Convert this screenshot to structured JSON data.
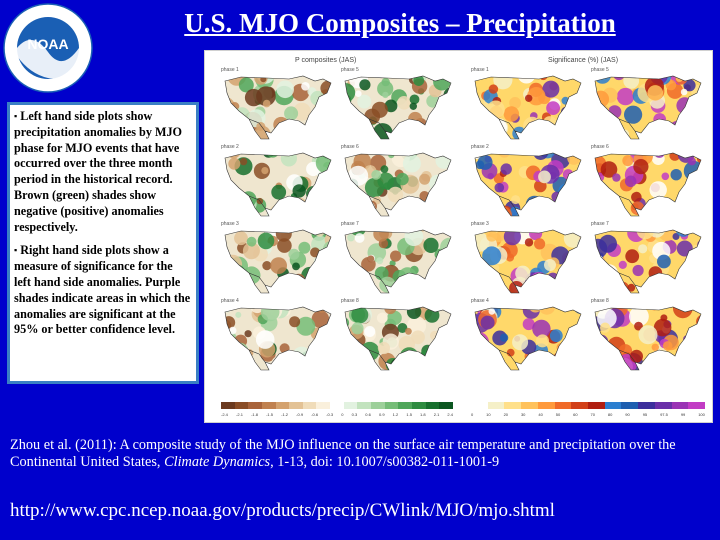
{
  "title": "U.S. MJO Composites – Precipitation",
  "logo": {
    "text": "NOAA",
    "icon": "noaa-logo-icon",
    "color": "#1a5fb4"
  },
  "textbox": {
    "bullet1": "Left hand side plots show precipitation anomalies by MJO phase for MJO events that have occurred over the three month period in the historical record. Brown (green) shades show negative (positive) anomalies respectively.",
    "bullet2": "Right hand side plots show a measure of significance for the left hand side anomalies. Purple shades indicate areas in which the anomalies are significant at the 95% or better confidence level."
  },
  "figure": {
    "left_title": "P composites (JAS)",
    "right_title": "Significance (%) (JAS)",
    "left_phases": [
      "phase 1",
      "phase 5",
      "phase 2",
      "phase 6",
      "phase 3",
      "phase 7",
      "phase 4",
      "phase 8"
    ],
    "right_phases": [
      "phase 1",
      "phase 5",
      "phase 2",
      "phase 6",
      "phase 3",
      "phase 7",
      "phase 4",
      "phase 8"
    ],
    "left_ticks": [
      "-2.4",
      "-2.1",
      "-1.8",
      "-1.5",
      "-1.2",
      "-0.9",
      "-0.6",
      "-0.3",
      "0",
      "0.3",
      "0.6",
      "0.9",
      "1.2",
      "1.5",
      "1.8",
      "2.1",
      "2.4"
    ],
    "right_ticks": [
      "0",
      "10",
      "20",
      "30",
      "40",
      "50",
      "60",
      "70",
      "80",
      "90",
      "95",
      "97.5",
      "99",
      "100"
    ],
    "left_colors": [
      "#6b3a1f",
      "#8a4d26",
      "#a8633a",
      "#c0814f",
      "#d4a26e",
      "#e3c295",
      "#f0dcb9",
      "#faf0dc",
      "#ffffff",
      "#e2f2e0",
      "#c2e3be",
      "#9dd09a",
      "#76bd78",
      "#4fa65a",
      "#2e8c40",
      "#17702e",
      "#0b5620"
    ],
    "right_colors": [
      "#ffffff",
      "#f5f0c8",
      "#ffe08a",
      "#ffc25c",
      "#ff9a3c",
      "#f06a28",
      "#d24018",
      "#b01e10",
      "#2b7fd0",
      "#1e5fb0",
      "#3c2f9c",
      "#6a2fa8",
      "#9a33b4",
      "#c23cc4"
    ]
  },
  "citation": {
    "part1": "Zhou et al. (2011): A composite study of the MJO influence on the surface air temperature and precipitation over the Continental United States,",
    "journal": "Climate Dynamics",
    "part2": ", 1-13, doi: 10.1007/s00382-011-1001-9"
  },
  "url": "http://www.cpc.ncep.noaa.gov/products/precip/CWlink/MJO/mjo.shtml"
}
